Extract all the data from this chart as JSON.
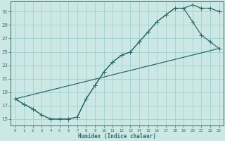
{
  "xlabel": "Humidex (Indice chaleur)",
  "bg_color": "#cce8e4",
  "grid_color": "#99cccc",
  "line_color": "#2d6b6b",
  "xlim": [
    -0.5,
    23.5
  ],
  "ylim": [
    14.0,
    32.5
  ],
  "xticks": [
    0,
    1,
    2,
    3,
    4,
    5,
    6,
    7,
    8,
    9,
    10,
    11,
    12,
    13,
    14,
    15,
    16,
    17,
    18,
    19,
    20,
    21,
    22,
    23
  ],
  "yticks": [
    15,
    17,
    19,
    21,
    23,
    25,
    27,
    29,
    31
  ],
  "curve1_x": [
    0,
    1,
    2,
    3,
    4,
    5,
    6,
    7,
    8,
    9,
    10,
    11,
    12,
    13,
    14,
    15,
    16,
    17,
    18,
    19,
    20,
    21,
    22,
    23
  ],
  "curve1_y": [
    18.0,
    17.2,
    16.5,
    15.6,
    15.0,
    15.0,
    15.0,
    15.3,
    18.0,
    20.0,
    22.0,
    23.5,
    24.5,
    25.0,
    26.5,
    28.0,
    29.5,
    30.5,
    31.5,
    31.5,
    32.0,
    31.5,
    31.5,
    31.0
  ],
  "curve2_x": [
    0,
    1,
    2,
    3,
    4,
    5,
    6,
    7,
    8,
    9,
    10,
    11,
    12,
    13,
    14,
    15,
    16,
    17,
    18,
    19,
    20,
    21,
    22,
    23
  ],
  "curve2_y": [
    18.0,
    17.2,
    16.5,
    15.6,
    15.0,
    15.0,
    15.0,
    15.3,
    18.0,
    20.0,
    22.0,
    23.5,
    24.5,
    25.0,
    26.5,
    28.0,
    29.5,
    30.5,
    31.5,
    31.5,
    29.5,
    27.5,
    26.5,
    25.5
  ],
  "line_x": [
    0,
    23
  ],
  "line_y": [
    18.0,
    25.5
  ],
  "lw": 0.9,
  "ms": 2.2
}
